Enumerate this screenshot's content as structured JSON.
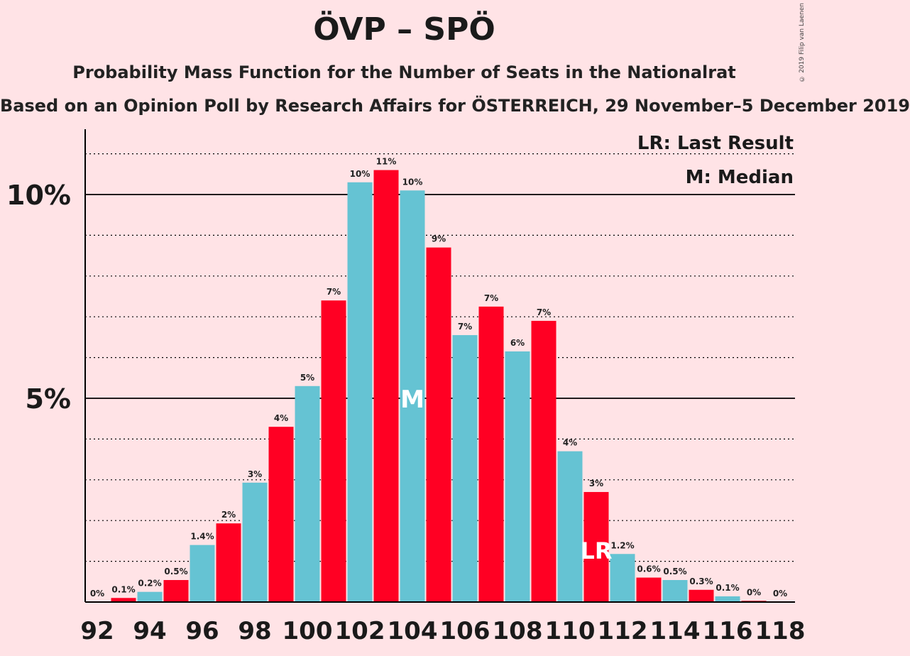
{
  "chart_data": {
    "type": "bar",
    "title": "ÖVP – SPÖ",
    "subtitle": "Probability Mass Function for the Number of Seats in the Nationalrat",
    "source": "Based on an Opinion Poll by Research Affairs for ÖSTERREICH, 29 November–5 December 2019",
    "copyright": "© 2019 Filip van Laenen",
    "legend": [
      "LR: Last Result",
      "M: Median"
    ],
    "legend_position": "top-right",
    "x": [
      92,
      93,
      94,
      95,
      96,
      97,
      98,
      99,
      100,
      101,
      102,
      103,
      104,
      105,
      106,
      107,
      108,
      109,
      110,
      111,
      112,
      113,
      114,
      115,
      116,
      117,
      118
    ],
    "values": [
      0,
      0.1,
      0.25,
      0.54,
      1.4,
      1.93,
      2.93,
      4.3,
      5.3,
      7.4,
      10.3,
      10.6,
      10.1,
      8.7,
      6.55,
      7.25,
      6.15,
      6.9,
      3.7,
      2.7,
      1.18,
      0.6,
      0.54,
      0.3,
      0.14,
      0.03,
      0
    ],
    "data_labels": [
      "0%",
      "0.1%",
      "0.2%",
      "0.5%",
      "1.4%",
      "2%",
      "3%",
      "4%",
      "5%",
      "7%",
      "10%",
      "11%",
      "10%",
      "9%",
      "7%",
      "7%",
      "6%",
      "7%",
      "4%",
      "3%",
      "1.2%",
      "0.6%",
      "0.5%",
      "0.3%",
      "0.1%",
      "0%",
      "0%"
    ],
    "x_tick_labels": [
      "92",
      "94",
      "96",
      "98",
      "100",
      "102",
      "104",
      "106",
      "108",
      "110",
      "112",
      "114",
      "116",
      "118"
    ],
    "y_tick_labels": [
      "5%",
      "10%"
    ],
    "ylim": [
      0,
      11.6
    ],
    "median_seat": 104,
    "median_label": "M",
    "last_result_seat": 111,
    "last_result_label": "LR",
    "colors": {
      "odd": "#FF0023",
      "even": "#65C3D3",
      "background": "#FFE3E6",
      "marker_text": "#FFFFFF"
    }
  }
}
